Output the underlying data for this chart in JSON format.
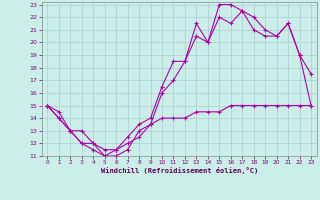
{
  "xlabel": "Windchill (Refroidissement éolien,°C)",
  "bg_color": "#cceee8",
  "grid_color": "#aacccc",
  "line_color": "#aa00aa",
  "xlim": [
    -0.5,
    23.5
  ],
  "ylim": [
    11,
    23.2
  ],
  "xticks": [
    0,
    1,
    2,
    3,
    4,
    5,
    6,
    7,
    8,
    9,
    10,
    11,
    12,
    13,
    14,
    15,
    16,
    17,
    18,
    19,
    20,
    21,
    22,
    23
  ],
  "yticks": [
    11,
    12,
    13,
    14,
    15,
    16,
    17,
    18,
    19,
    20,
    21,
    22,
    23
  ],
  "line1_x": [
    0,
    1,
    2,
    3,
    4,
    5,
    6,
    7,
    8,
    9,
    10,
    11,
    12,
    13,
    14,
    15,
    16,
    17,
    18,
    19,
    20,
    21,
    22,
    23
  ],
  "line1_y": [
    15,
    14,
    13,
    12,
    11.5,
    11,
    11,
    11.5,
    13,
    13.5,
    14,
    14,
    14,
    14.5,
    14.5,
    14.5,
    15,
    15,
    15,
    15,
    15,
    15,
    15,
    15
  ],
  "line2_x": [
    0,
    1,
    2,
    3,
    4,
    5,
    6,
    7,
    8,
    9,
    10,
    11,
    12,
    13,
    14,
    15,
    16,
    17,
    18,
    19,
    20,
    21,
    22,
    23
  ],
  "line2_y": [
    15,
    14,
    13,
    12,
    12,
    11,
    11.5,
    12,
    12.5,
    13.5,
    16,
    17,
    18.5,
    20.5,
    20,
    22,
    21.5,
    22.5,
    22,
    21,
    20.5,
    21.5,
    19,
    15
  ],
  "line3_x": [
    0,
    1,
    2,
    3,
    4,
    5,
    6,
    7,
    8,
    9,
    10,
    11,
    12,
    13,
    14,
    15,
    16,
    17,
    18,
    19,
    20,
    21,
    22,
    23
  ],
  "line3_y": [
    15,
    14.5,
    13,
    13,
    12,
    11.5,
    11.5,
    12.5,
    13.5,
    14,
    16.5,
    18.5,
    18.5,
    21.5,
    20,
    23,
    23,
    22.5,
    21,
    20.5,
    20.5,
    21.5,
    19,
    17.5
  ]
}
